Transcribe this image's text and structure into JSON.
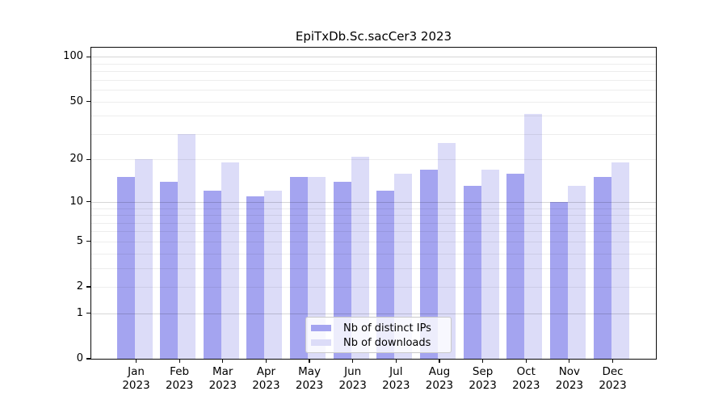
{
  "chart_data": {
    "type": "bar",
    "title": "EpiTxDb.Sc.sacCer3 2023",
    "categories": [
      "Jan 2023",
      "Feb 2023",
      "Mar 2023",
      "Apr 2023",
      "May 2023",
      "Jun 2023",
      "Jul 2023",
      "Aug 2023",
      "Sep 2023",
      "Oct 2023",
      "Nov 2023",
      "Dec 2023"
    ],
    "series": [
      {
        "name": "Nb of distinct IPs",
        "color": "#a4a4f0",
        "values": [
          15,
          14,
          12,
          11,
          15,
          14,
          12,
          17,
          13,
          16,
          10,
          15
        ]
      },
      {
        "name": "Nb of downloads",
        "color": "#dcdcf8",
        "values": [
          20,
          30,
          19,
          12,
          15,
          21,
          16,
          26,
          17,
          41,
          13,
          19
        ]
      }
    ],
    "xlabel": "",
    "ylabel": "",
    "y_scale": "log1p",
    "y_tick_values": [
      0,
      1,
      2,
      5,
      10,
      20,
      50,
      100
    ],
    "y_major_gridlines": [
      1,
      10,
      100
    ],
    "y_minor_gridlines": [
      2,
      3,
      4,
      5,
      6,
      7,
      8,
      9,
      20,
      30,
      40,
      50,
      60,
      70,
      80,
      90
    ],
    "ylim": [
      0,
      115
    ],
    "grid": true,
    "legend_position": "lower center"
  },
  "colors": {
    "axis": "#0a0a0a",
    "grid_major": "rgba(0,0,0,0.16)",
    "grid_minor": "rgba(0,0,0,0.07)",
    "background": "#ffffff"
  }
}
